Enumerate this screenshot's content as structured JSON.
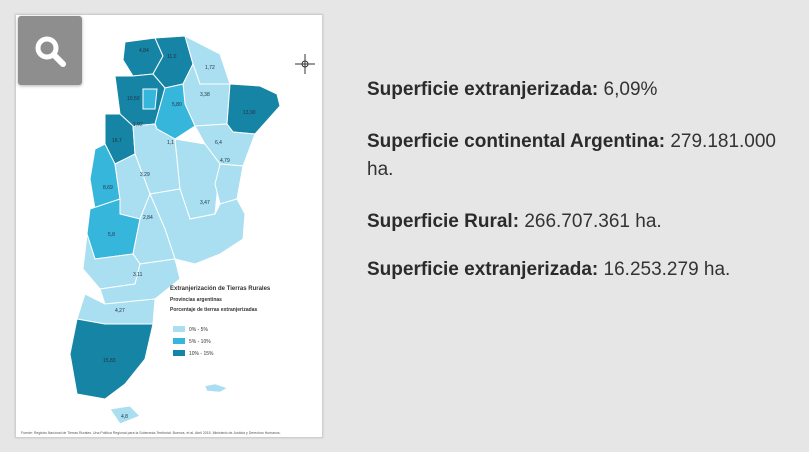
{
  "zoom": {
    "icon": "magnifier-icon"
  },
  "map": {
    "title": "Extranjerización de Tierras Rurales",
    "subtitle": "Provincias argentinas",
    "subtitle2": "Porcentaje de tierras extranjerizadas",
    "legend": [
      {
        "label": "0% - 5%",
        "color": "#a9dff0"
      },
      {
        "label": "5% - 10%",
        "color": "#37b6dc"
      },
      {
        "label": "10% - 15%",
        "color": "#1684a4"
      }
    ],
    "labels": [
      "4,84",
      "11,0",
      "1,72",
      "3,38",
      "10,50",
      "5,80",
      "13,90",
      "1,92",
      "6,4",
      "1,1",
      "4,79",
      "16,7",
      "3,29",
      "8,69",
      "2,84",
      "3,47",
      "5,8",
      "3,11",
      "4,27",
      "15,83",
      "4,8"
    ],
    "source": "Fuente: Registro Nacional de Tierras Rurales. Una Política Regional para la Soberanía Territorial. Buenos. et al. Abril 2015. Ministerio de Justicia y Derechos Humanos."
  },
  "stats": {
    "l1_label": "Superficie extranjerizada:",
    "l1_value": " 6,09%",
    "l2_label": "Superficie continental Argentina:",
    "l2_value": " 279.181.000 ha.",
    "l3_label": "Superficie Rural:",
    "l3_value": " 266.707.361 ha.",
    "l4_label": "Superficie extranjerizada:",
    "l4_value": " 16.253.279 ha."
  }
}
